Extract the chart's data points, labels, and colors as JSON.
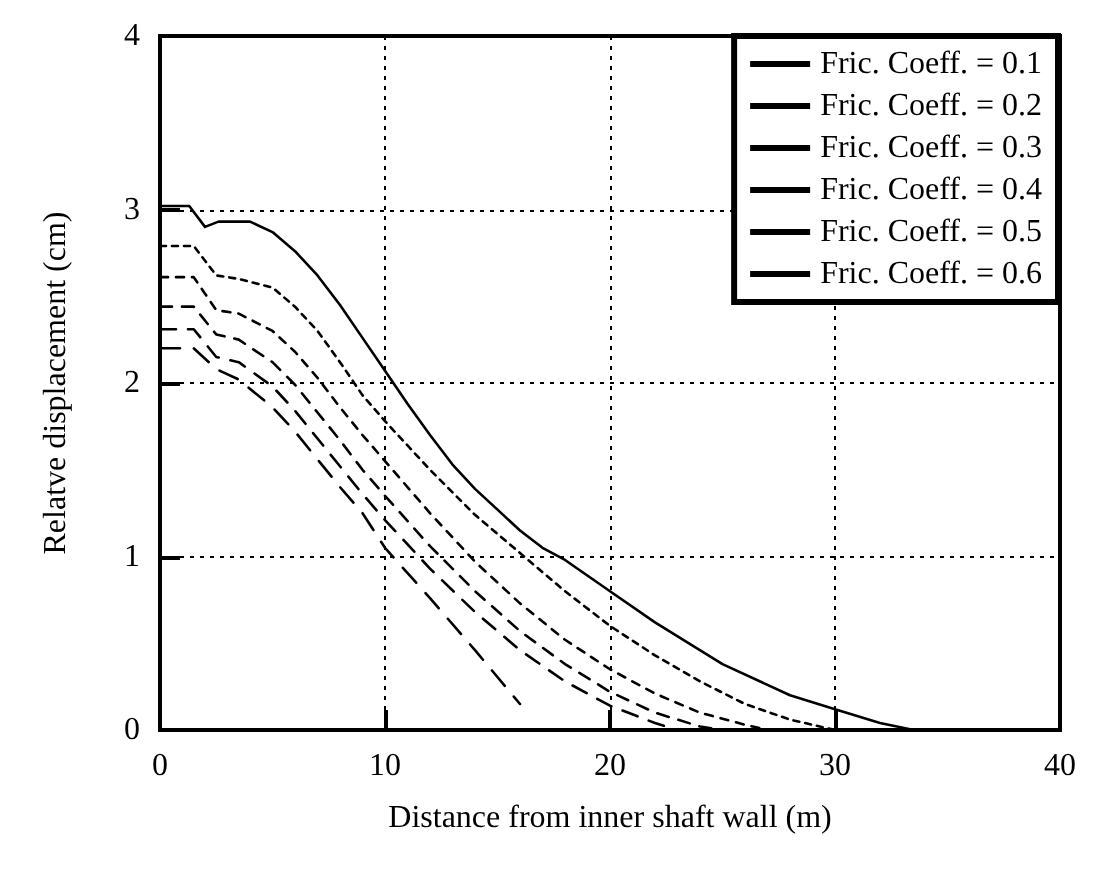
{
  "chart_data": {
    "type": "line",
    "xlabel": "Distance from inner shaft wall (m)",
    "ylabel": "Relatve displacement (cm)",
    "xlim": [
      0,
      40
    ],
    "xticks": [
      0,
      10,
      20,
      30,
      40
    ],
    "ylim": [
      0,
      4
    ],
    "yticks": [
      0,
      1,
      2,
      3,
      4
    ],
    "grid": true,
    "legend": "top right",
    "marker": "none",
    "series": [
      {
        "name": "Fric. Coeff. = 0.1",
        "color": "#000000",
        "line_style": "solid",
        "x": [
          0,
          1.3,
          2,
          2.6,
          4,
          5,
          6,
          7,
          8,
          9,
          10,
          11,
          12,
          13,
          14,
          15,
          16,
          17,
          18,
          20,
          22,
          25,
          28,
          30,
          32,
          33.5
        ],
        "values": [
          3.02,
          3.02,
          2.9,
          2.93,
          2.93,
          2.87,
          2.76,
          2.62,
          2.45,
          2.26,
          2.07,
          1.88,
          1.7,
          1.53,
          1.39,
          1.27,
          1.15,
          1.05,
          0.98,
          0.8,
          0.62,
          0.38,
          0.2,
          0.12,
          0.04,
          0
        ]
      },
      {
        "name": "Fric. Coeff. = 0.2",
        "color": "#000000",
        "line_style": "dotted",
        "x": [
          0,
          1.5,
          2.5,
          3.5,
          5,
          6,
          7,
          8,
          9,
          10,
          12,
          14,
          16,
          18,
          20,
          22,
          24,
          26,
          28,
          30
        ],
        "values": [
          2.79,
          2.79,
          2.62,
          2.6,
          2.55,
          2.44,
          2.3,
          2.12,
          1.93,
          1.78,
          1.5,
          1.24,
          1.02,
          0.8,
          0.6,
          0.43,
          0.28,
          0.15,
          0.06,
          0
        ]
      },
      {
        "name": "Fric. Coeff. = 0.3",
        "color": "#000000",
        "line_style": "dashed",
        "x": [
          0,
          1.5,
          2.5,
          3.5,
          5,
          6,
          7,
          8,
          9,
          10,
          12,
          14,
          16,
          18,
          20,
          22,
          24,
          26,
          27
        ],
        "values": [
          2.61,
          2.61,
          2.42,
          2.4,
          2.3,
          2.18,
          2.03,
          1.86,
          1.7,
          1.55,
          1.25,
          0.97,
          0.73,
          0.52,
          0.35,
          0.21,
          0.1,
          0.03,
          0
        ]
      },
      {
        "name": "Fric. Coeff. = 0.4",
        "color": "#000000",
        "line_style": "dashed",
        "x": [
          0,
          1.5,
          2.5,
          3.5,
          5,
          6,
          7,
          8,
          9,
          10,
          12,
          14,
          16,
          18,
          20,
          22,
          24,
          25
        ],
        "values": [
          2.44,
          2.44,
          2.28,
          2.25,
          2.12,
          1.99,
          1.83,
          1.67,
          1.5,
          1.35,
          1.06,
          0.8,
          0.57,
          0.38,
          0.22,
          0.1,
          0.02,
          0
        ]
      },
      {
        "name": "Fric. Coeff. = 0.5",
        "color": "#000000",
        "line_style": "dashed",
        "x": [
          0,
          1.5,
          2.5,
          3.5,
          5,
          6,
          7,
          8,
          9,
          10,
          12,
          14,
          16,
          18,
          20,
          22,
          23
        ],
        "values": [
          2.31,
          2.31,
          2.15,
          2.12,
          1.98,
          1.84,
          1.68,
          1.52,
          1.36,
          1.21,
          0.93,
          0.68,
          0.46,
          0.28,
          0.14,
          0.04,
          0
        ]
      },
      {
        "name": "Fric. Coeff. = 0.6",
        "color": "#000000",
        "line_style": "dashed",
        "x": [
          0,
          1.5,
          2.5,
          3.5,
          5,
          6,
          7,
          8,
          9,
          10,
          12,
          14,
          16
        ],
        "values": [
          2.2,
          2.2,
          2.08,
          2.02,
          1.86,
          1.72,
          1.56,
          1.4,
          1.25,
          1.05,
          0.76,
          0.46,
          0.15
        ]
      }
    ]
  }
}
